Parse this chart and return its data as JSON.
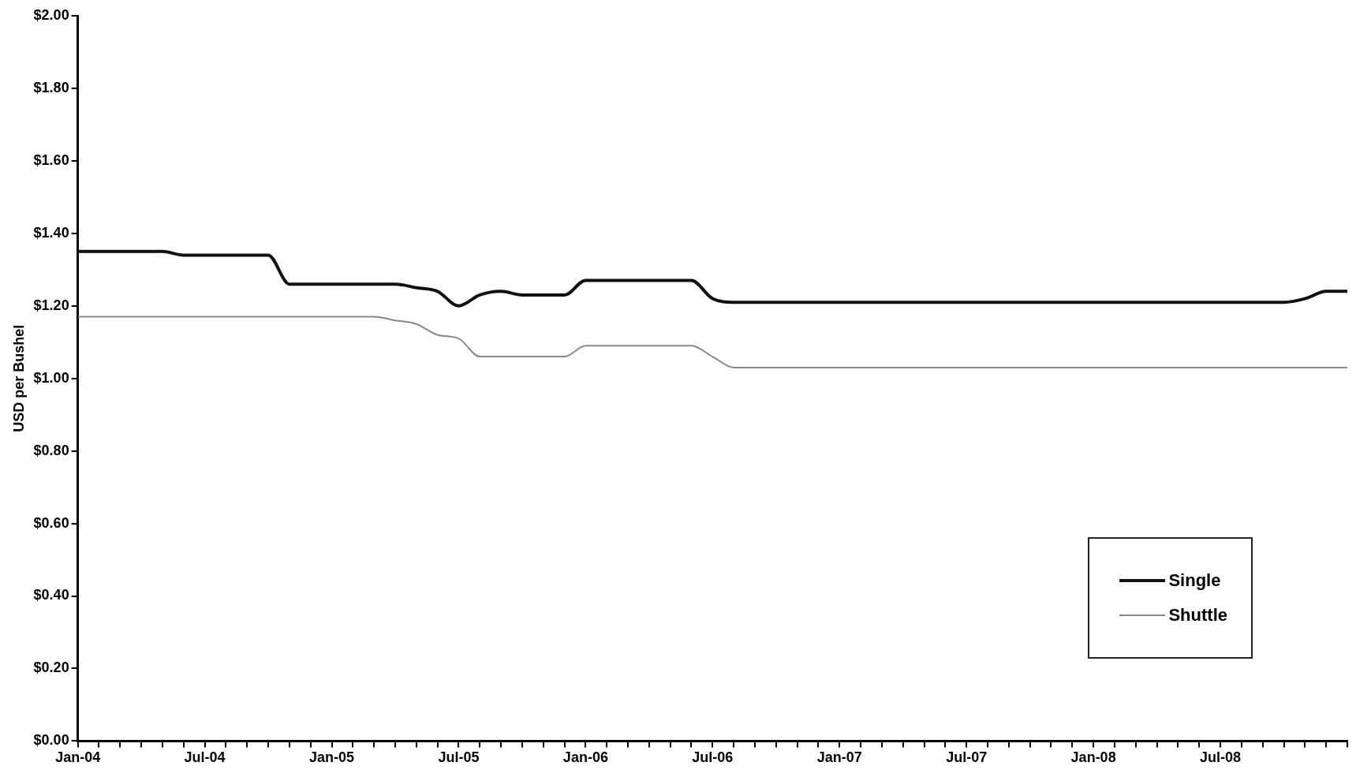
{
  "chart_data": {
    "type": "line",
    "ylabel": "USD per Bushel",
    "x": [
      "2004-01",
      "2004-02",
      "2004-03",
      "2004-04",
      "2004-05",
      "2004-06",
      "2004-07",
      "2004-08",
      "2004-09",
      "2004-10",
      "2004-11",
      "2004-12",
      "2005-01",
      "2005-02",
      "2005-03",
      "2005-04",
      "2005-05",
      "2005-06",
      "2005-07",
      "2005-08",
      "2005-09",
      "2005-10",
      "2005-11",
      "2005-12",
      "2006-01",
      "2006-02",
      "2006-03",
      "2006-04",
      "2006-05",
      "2006-06",
      "2006-07",
      "2006-08",
      "2006-09",
      "2006-10",
      "2006-11",
      "2006-12",
      "2007-01",
      "2007-02",
      "2007-03",
      "2007-04",
      "2007-05",
      "2007-06",
      "2007-07",
      "2007-08",
      "2007-09",
      "2007-10",
      "2007-11",
      "2007-12",
      "2008-01",
      "2008-02",
      "2008-03",
      "2008-04",
      "2008-05",
      "2008-06",
      "2008-07",
      "2008-08",
      "2008-09",
      "2008-10",
      "2008-11",
      "2008-12",
      "2009-01"
    ],
    "series": [
      {
        "name": "Single",
        "color": "#111111",
        "values": [
          1.35,
          1.35,
          1.35,
          1.35,
          1.35,
          1.34,
          1.34,
          1.34,
          1.34,
          1.34,
          1.26,
          1.26,
          1.26,
          1.26,
          1.26,
          1.26,
          1.25,
          1.24,
          1.2,
          1.23,
          1.24,
          1.23,
          1.23,
          1.23,
          1.27,
          1.27,
          1.27,
          1.27,
          1.27,
          1.27,
          1.22,
          1.21,
          1.21,
          1.21,
          1.21,
          1.21,
          1.21,
          1.21,
          1.21,
          1.21,
          1.21,
          1.21,
          1.21,
          1.21,
          1.21,
          1.21,
          1.21,
          1.21,
          1.21,
          1.21,
          1.21,
          1.21,
          1.21,
          1.21,
          1.21,
          1.21,
          1.21,
          1.21,
          1.22,
          1.24,
          1.24
        ]
      },
      {
        "name": "Shuttle",
        "color": "#888888",
        "values": [
          1.17,
          1.17,
          1.17,
          1.17,
          1.17,
          1.17,
          1.17,
          1.17,
          1.17,
          1.17,
          1.17,
          1.17,
          1.17,
          1.17,
          1.17,
          1.16,
          1.15,
          1.12,
          1.11,
          1.06,
          1.06,
          1.06,
          1.06,
          1.06,
          1.09,
          1.09,
          1.09,
          1.09,
          1.09,
          1.09,
          1.06,
          1.03,
          1.03,
          1.03,
          1.03,
          1.03,
          1.03,
          1.03,
          1.03,
          1.03,
          1.03,
          1.03,
          1.03,
          1.03,
          1.03,
          1.03,
          1.03,
          1.03,
          1.03,
          1.03,
          1.03,
          1.03,
          1.03,
          1.03,
          1.03,
          1.03,
          1.03,
          1.03,
          1.03,
          1.03,
          1.03
        ]
      }
    ],
    "xlim": [
      "2004-01",
      "2009-01"
    ],
    "xticks": [
      {
        "value": "2004-01",
        "label": "Jan-04"
      },
      {
        "value": "2004-02",
        "label": null
      },
      {
        "value": "2004-03",
        "label": null
      },
      {
        "value": "2004-04",
        "label": null
      },
      {
        "value": "2004-05",
        "label": null
      },
      {
        "value": "2004-06",
        "label": null
      },
      {
        "value": "2004-07",
        "label": "Jul-04"
      },
      {
        "value": "2004-08",
        "label": null
      },
      {
        "value": "2004-09",
        "label": null
      },
      {
        "value": "2004-10",
        "label": null
      },
      {
        "value": "2004-11",
        "label": null
      },
      {
        "value": "2004-12",
        "label": null
      },
      {
        "value": "2005-01",
        "label": "Jan-05"
      },
      {
        "value": "2005-02",
        "label": null
      },
      {
        "value": "2005-03",
        "label": null
      },
      {
        "value": "2005-04",
        "label": null
      },
      {
        "value": "2005-05",
        "label": null
      },
      {
        "value": "2005-06",
        "label": null
      },
      {
        "value": "2005-07",
        "label": "Jul-05"
      },
      {
        "value": "2005-08",
        "label": null
      },
      {
        "value": "2005-09",
        "label": null
      },
      {
        "value": "2005-10",
        "label": null
      },
      {
        "value": "2005-11",
        "label": null
      },
      {
        "value": "2005-12",
        "label": null
      },
      {
        "value": "2006-01",
        "label": "Jan-06"
      },
      {
        "value": "2006-02",
        "label": null
      },
      {
        "value": "2006-03",
        "label": null
      },
      {
        "value": "2006-04",
        "label": null
      },
      {
        "value": "2006-05",
        "label": null
      },
      {
        "value": "2006-06",
        "label": null
      },
      {
        "value": "2006-07",
        "label": "Jul-06"
      },
      {
        "value": "2006-08",
        "label": null
      },
      {
        "value": "2006-09",
        "label": null
      },
      {
        "value": "2006-10",
        "label": null
      },
      {
        "value": "2006-11",
        "label": null
      },
      {
        "value": "2006-12",
        "label": null
      },
      {
        "value": "2007-01",
        "label": "Jan-07"
      },
      {
        "value": "2007-02",
        "label": null
      },
      {
        "value": "2007-03",
        "label": null
      },
      {
        "value": "2007-04",
        "label": null
      },
      {
        "value": "2007-05",
        "label": null
      },
      {
        "value": "2007-06",
        "label": null
      },
      {
        "value": "2007-07",
        "label": "Jul-07"
      },
      {
        "value": "2007-08",
        "label": null
      },
      {
        "value": "2007-09",
        "label": null
      },
      {
        "value": "2007-10",
        "label": null
      },
      {
        "value": "2007-11",
        "label": null
      },
      {
        "value": "2007-12",
        "label": null
      },
      {
        "value": "2008-01",
        "label": "Jan-08"
      },
      {
        "value": "2008-02",
        "label": null
      },
      {
        "value": "2008-03",
        "label": null
      },
      {
        "value": "2008-04",
        "label": null
      },
      {
        "value": "2008-05",
        "label": null
      },
      {
        "value": "2008-06",
        "label": null
      },
      {
        "value": "2008-07",
        "label": "Jul-08"
      },
      {
        "value": "2008-08",
        "label": null
      },
      {
        "value": "2008-09",
        "label": null
      },
      {
        "value": "2008-10",
        "label": null
      },
      {
        "value": "2008-11",
        "label": null
      },
      {
        "value": "2008-12",
        "label": null
      },
      {
        "value": "2009-01",
        "label": null
      }
    ],
    "ylim": [
      0,
      2
    ],
    "yticks": [
      {
        "value": 0,
        "label": "$0.00"
      },
      {
        "value": 0.2,
        "label": "$0.20"
      },
      {
        "value": 0.4,
        "label": "$0.40"
      },
      {
        "value": 0.6,
        "label": "$0.60"
      },
      {
        "value": 0.8,
        "label": "$0.80"
      },
      {
        "value": 1,
        "label": "$1.00"
      },
      {
        "value": 1.2,
        "label": "$1.20"
      },
      {
        "value": 1.4,
        "label": "$1.40"
      },
      {
        "value": 1.6,
        "label": "$1.60"
      },
      {
        "value": 1.8,
        "label": "$1.80"
      },
      {
        "value": 2,
        "label": "$2.00"
      }
    ],
    "grid": false,
    "legend": "bottom right",
    "marker": "none",
    "line_style": "solid"
  }
}
